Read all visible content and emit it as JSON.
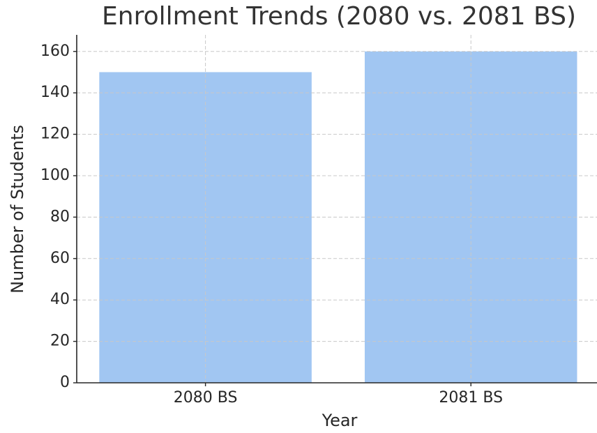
{
  "chart_data": {
    "type": "bar",
    "title": "Enrollment Trends (2080 vs. 2081 BS)",
    "x_label": "Year",
    "y_label": "Number of Students",
    "categories": [
      "2080 BS",
      "2081 BS"
    ],
    "values": [
      150,
      160
    ],
    "color": "#a1c6f2",
    "ylim": [
      0,
      168
    ],
    "yticks": [
      0,
      20,
      40,
      60,
      80,
      100,
      120,
      140,
      160
    ],
    "grid": true
  }
}
